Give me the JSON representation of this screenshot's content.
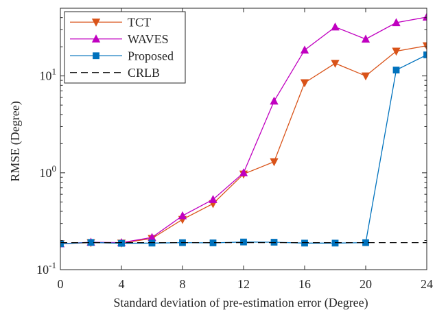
{
  "chart_data": {
    "type": "line",
    "title": "",
    "xlabel": "Standard deviation of pre-estimation error (Degree)",
    "ylabel": "RMSE (Degree)",
    "x": [
      0,
      2,
      4,
      6,
      8,
      10,
      12,
      14,
      16,
      18,
      20,
      22,
      24
    ],
    "xlim": [
      0,
      24
    ],
    "ylim": [
      0.1,
      50
    ],
    "yscale": "log",
    "grid": false,
    "legend_position": "top-left",
    "x_ticks": [
      {
        "value": 0,
        "label": "0"
      },
      {
        "value": 4,
        "label": "4"
      },
      {
        "value": 8,
        "label": "8"
      },
      {
        "value": 12,
        "label": "12"
      },
      {
        "value": 16,
        "label": "16"
      },
      {
        "value": 20,
        "label": "20"
      },
      {
        "value": 24,
        "label": "24"
      }
    ],
    "y_ticks": [
      {
        "value": 0.1,
        "base": "10",
        "exp": "-1"
      },
      {
        "value": 1,
        "base": "10",
        "exp": "0"
      },
      {
        "value": 10,
        "base": "10",
        "exp": "1"
      }
    ],
    "series": [
      {
        "name": "TCT",
        "color": "#D95319",
        "marker": "triangle-down",
        "line": "solid",
        "values": [
          0.185,
          0.19,
          0.188,
          0.21,
          0.33,
          0.48,
          0.97,
          1.3,
          8.5,
          13.5,
          10.0,
          18.0,
          20.5
        ]
      },
      {
        "name": "WAVES",
        "color": "#C000C0",
        "marker": "triangle-up",
        "line": "solid",
        "values": [
          0.185,
          0.192,
          0.19,
          0.215,
          0.36,
          0.53,
          1.0,
          5.5,
          18.5,
          32.0,
          24.0,
          35.5,
          40.5
        ]
      },
      {
        "name": "Proposed",
        "color": "#0072BD",
        "marker": "square",
        "line": "solid",
        "values": [
          0.185,
          0.191,
          0.187,
          0.188,
          0.19,
          0.189,
          0.193,
          0.192,
          0.188,
          0.188,
          0.19,
          11.5,
          16.5
        ]
      },
      {
        "name": "CRLB",
        "color": "#000000",
        "marker": "none",
        "line": "dashed",
        "values": [
          0.19,
          0.19,
          0.19,
          0.19,
          0.19,
          0.19,
          0.19,
          0.19,
          0.19,
          0.19,
          0.19,
          0.19,
          0.19
        ]
      }
    ]
  }
}
